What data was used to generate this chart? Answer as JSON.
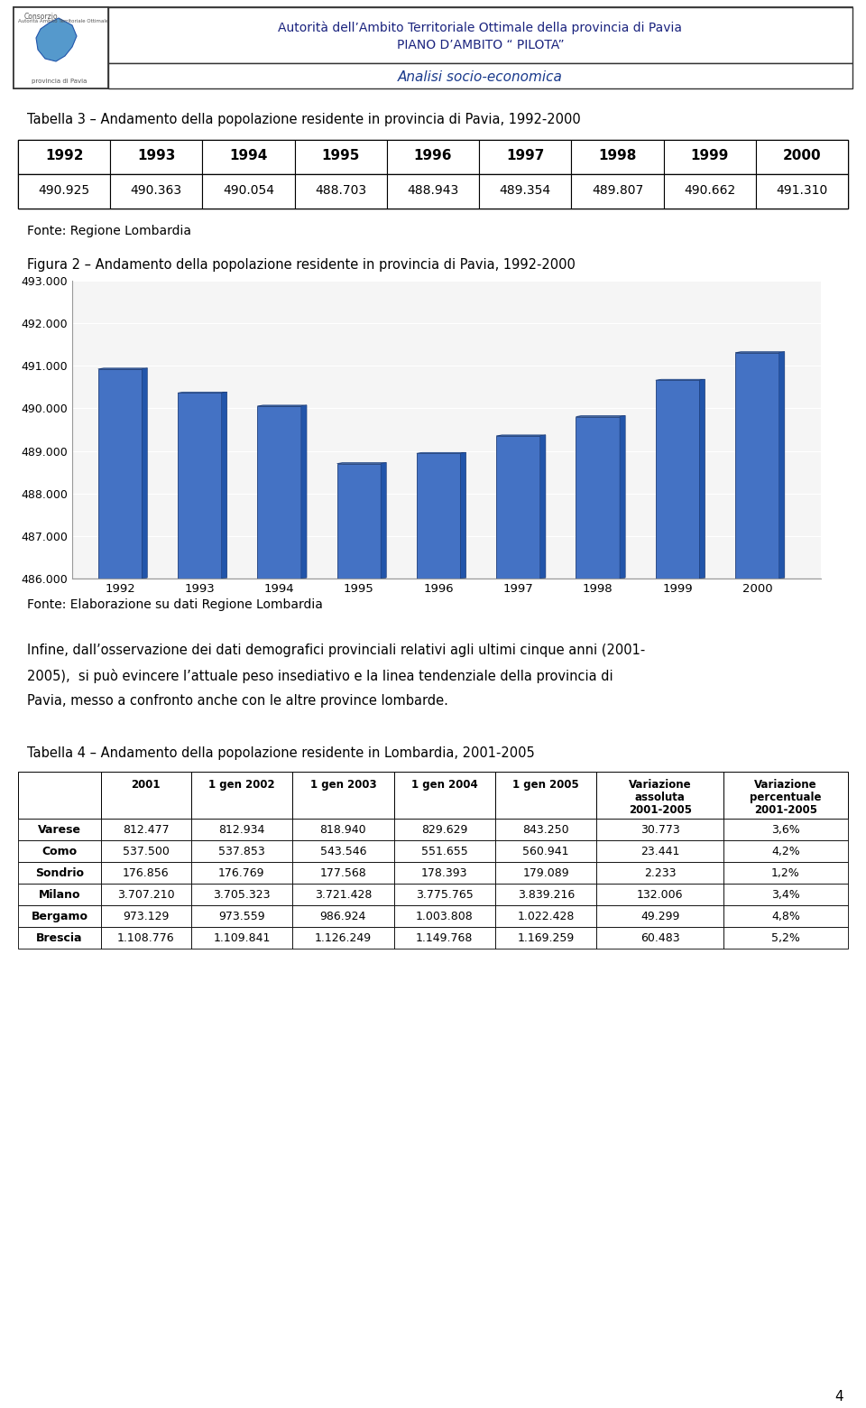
{
  "header_title1": "Autorità dell’Ambito Territoriale Ottimale della provincia di Pavia",
  "header_title2": "PIANO D’AMBITO “ PILOTA”",
  "header_subtitle": "Analisi socio-economica",
  "table3_title": "Tabella 3 – Andamento della popolazione residente in provincia di Pavia, 1992-2000",
  "table3_years": [
    "1992",
    "1993",
    "1994",
    "1995",
    "1996",
    "1997",
    "1998",
    "1999",
    "2000"
  ],
  "table3_values": [
    "490.925",
    "490.363",
    "490.054",
    "488.703",
    "488.943",
    "489.354",
    "489.807",
    "490.662",
    "491.310"
  ],
  "table3_values_num": [
    490925,
    490363,
    490054,
    488703,
    488943,
    489354,
    489807,
    490662,
    491310
  ],
  "fonte1": "Fonte: Regione Lombardia",
  "figure2_title": "Figura 2 – Andamento della popolazione residente in provincia di Pavia, 1992-2000",
  "chart_ylim_min": 486000,
  "chart_ylim_max": 493000,
  "chart_yticks": [
    486000,
    487000,
    488000,
    489000,
    490000,
    491000,
    492000,
    493000
  ],
  "chart_ytick_labels": [
    "486.000",
    "487.000",
    "488.000",
    "489.000",
    "490.000",
    "491.000",
    "492.000",
    "493.000"
  ],
  "chart_bar_color": "#4472C4",
  "chart_bar_edge": "#1F3F7A",
  "fonte2": "Fonte: Elaborazione su dati Regione Lombardia",
  "body_text_lines": [
    "Infine, dall’osservazione dei dati demografici provinciali relativi agli ultimi cinque anni (2001-",
    "2005),  si può evincere l’attuale peso insediativo e la linea tendenziale della provincia di",
    "Pavia, messo a confronto anche con le altre province lombarde."
  ],
  "table4_title": "Tabella 4 – Andamento della popolazione residente in Lombardia, 2001-2005",
  "table4_col_headers": [
    "",
    "2001",
    "1 gen 2002",
    "1 gen 2003",
    "1 gen 2004",
    "1 gen 2005",
    "Variazione\nassoluta\n2001-2005",
    "Variazione\npercentuale\n2001-2005"
  ],
  "table4_rows": [
    [
      "Varese",
      "812.477",
      "812.934",
      "818.940",
      "829.629",
      "843.250",
      "30.773",
      "3,6%"
    ],
    [
      "Como",
      "537.500",
      "537.853",
      "543.546",
      "551.655",
      "560.941",
      "23.441",
      "4,2%"
    ],
    [
      "Sondrio",
      "176.856",
      "176.769",
      "177.568",
      "178.393",
      "179.089",
      "2.233",
      "1,2%"
    ],
    [
      "Milano",
      "3.707.210",
      "3.705.323",
      "3.721.428",
      "3.775.765",
      "3.839.216",
      "132.006",
      "3,4%"
    ],
    [
      "Bergamo",
      "973.129",
      "973.559",
      "986.924",
      "1.003.808",
      "1.022.428",
      "49.299",
      "4,8%"
    ],
    [
      "Brescia",
      "1.108.776",
      "1.109.841",
      "1.126.249",
      "1.149.768",
      "1.169.259",
      "60.483",
      "5,2%"
    ]
  ],
  "page_number": "4",
  "bg_color": "#FFFFFF",
  "header_text_color": "#1A237E",
  "subtitle_color": "#1A3A8C",
  "logo_text_color": "#555555",
  "logo_map_color": "#5599CC",
  "logo_map_edge": "#2255AA"
}
